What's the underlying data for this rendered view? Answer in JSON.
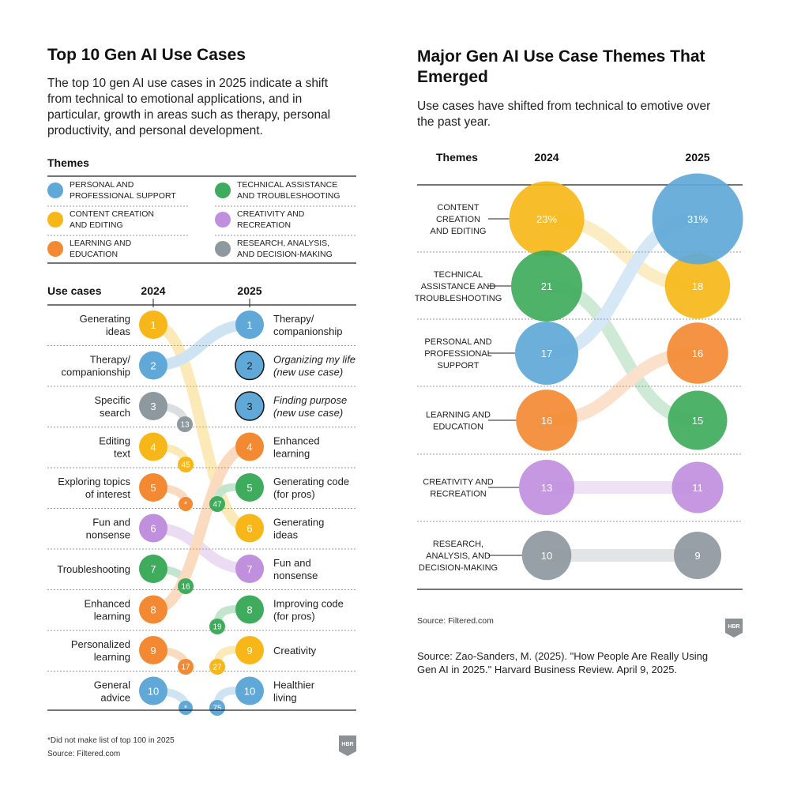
{
  "colors": {
    "personal_support": "#5fa8d8",
    "content_creation": "#f7b718",
    "learning": "#f38a33",
    "technical": "#3fab5c",
    "creativity": "#c08fde",
    "research": "#8e989f",
    "rule": "#222222",
    "dotted": "#9a9a9a"
  },
  "left": {
    "title": "Top 10 Gen AI Use Cases",
    "description_lines": [
      "The top 10 gen AI use cases in 2025 indicate a shift",
      "from technical to emotional applications, and in",
      "particular, growth in areas such as therapy, personal",
      "productivity, and personal development."
    ],
    "themes_heading": "Themes",
    "themes": [
      {
        "key": "personal_support",
        "lines": [
          "PERSONAL AND",
          "PROFESSIONAL SUPPORT"
        ]
      },
      {
        "key": "technical",
        "lines": [
          "TECHNICAL ASSISTANCE",
          "AND TROUBLESHOOTING"
        ]
      },
      {
        "key": "content_creation",
        "lines": [
          "CONTENT CREATION",
          "AND EDITING"
        ]
      },
      {
        "key": "creativity",
        "lines": [
          "CREATIVITY AND",
          "RECREATION"
        ]
      },
      {
        "key": "learning",
        "lines": [
          "LEARNING AND",
          "EDUCATION"
        ]
      },
      {
        "key": "research",
        "lines": [
          "RESEARCH, ANALYSIS,",
          "AND DECISION-MAKING"
        ]
      }
    ],
    "usecases_heading": "Use cases",
    "footnote": "*Did not make list of top 100 in 2025",
    "source": "Source: Filtered.com",
    "logo": "HBR"
  },
  "right": {
    "title_lines": [
      "Major Gen AI Use Case Themes That",
      "Emerged"
    ],
    "subtitle_lines": [
      "Use cases have shifted from technical to emotive over",
      "the past year."
    ],
    "themes_heading": "Themes",
    "source": "Source: Filtered.com",
    "logo": "HBR",
    "citation_lines": [
      "Source: Zao-Sanders, M. (2025). \"How People Are Really Using",
      "Gen AI in 2025.\" Harvard Business Review. April 9, 2025."
    ]
  },
  "chart_data": [
    {
      "type": "table",
      "title": "Top 10 Gen AI Use Cases",
      "columns": [
        "2024",
        "2025"
      ],
      "rankings_2024": [
        {
          "rank": 1,
          "label_lines": [
            "Generating",
            "ideas"
          ],
          "theme": "content_creation",
          "rank_2025": "6"
        },
        {
          "rank": 2,
          "label_lines": [
            "Therapy/",
            "companionship"
          ],
          "theme": "personal_support",
          "rank_2025": "1"
        },
        {
          "rank": 3,
          "label_lines": [
            "Specific",
            "search"
          ],
          "theme": "research",
          "rank_2025": "13"
        },
        {
          "rank": 4,
          "label_lines": [
            "Editing",
            "text"
          ],
          "theme": "content_creation",
          "rank_2025": "45"
        },
        {
          "rank": 5,
          "label_lines": [
            "Exploring topics",
            "of interest"
          ],
          "theme": "learning",
          "rank_2025": "*"
        },
        {
          "rank": 6,
          "label_lines": [
            "Fun and",
            "nonsense"
          ],
          "theme": "creativity",
          "rank_2025": "7"
        },
        {
          "rank": 7,
          "label_lines": [
            "Troubleshooting"
          ],
          "theme": "technical",
          "rank_2025": "16"
        },
        {
          "rank": 8,
          "label_lines": [
            "Enhanced",
            "learning"
          ],
          "theme": "learning",
          "rank_2025": "4"
        },
        {
          "rank": 9,
          "label_lines": [
            "Personalized",
            "learning"
          ],
          "theme": "learning",
          "rank_2025": "17"
        },
        {
          "rank": 10,
          "label_lines": [
            "General",
            "advice"
          ],
          "theme": "personal_support",
          "rank_2025": "*"
        }
      ],
      "rankings_2025": [
        {
          "rank": 1,
          "label_lines": [
            "Therapy/",
            "companionship"
          ],
          "theme": "personal_support",
          "rank_2024": "2",
          "italic": false
        },
        {
          "rank": 2,
          "label_lines": [
            "Organizing my life",
            "(new use case)"
          ],
          "theme": "personal_support",
          "rank_2024": "new",
          "italic": true
        },
        {
          "rank": 3,
          "label_lines": [
            "Finding purpose",
            "(new use case)"
          ],
          "theme": "personal_support",
          "rank_2024": "new",
          "italic": true
        },
        {
          "rank": 4,
          "label_lines": [
            "Enhanced",
            "learning"
          ],
          "theme": "learning",
          "rank_2024": "8",
          "italic": false
        },
        {
          "rank": 5,
          "label_lines": [
            "Generating code",
            "(for pros)"
          ],
          "theme": "technical",
          "rank_2024": "47",
          "italic": false
        },
        {
          "rank": 6,
          "label_lines": [
            "Generating",
            "ideas"
          ],
          "theme": "content_creation",
          "rank_2024": "1",
          "italic": false
        },
        {
          "rank": 7,
          "label_lines": [
            "Fun and",
            "nonsense"
          ],
          "theme": "creativity",
          "rank_2024": "6",
          "italic": false
        },
        {
          "rank": 8,
          "label_lines": [
            "Improving code",
            "(for pros)"
          ],
          "theme": "technical",
          "rank_2024": "19",
          "italic": false
        },
        {
          "rank": 9,
          "label_lines": [
            "Creativity"
          ],
          "theme": "content_creation",
          "rank_2024": "27",
          "italic": false
        },
        {
          "rank": 10,
          "label_lines": [
            "Healthier",
            "living"
          ],
          "theme": "personal_support",
          "rank_2024": "75",
          "italic": false
        }
      ]
    },
    {
      "type": "bump",
      "title": "Major Gen AI Use Case Themes That Emerged",
      "columns": [
        "2024",
        "2025"
      ],
      "unit": "percent",
      "themes": [
        {
          "key": "content_creation",
          "label_lines": [
            "CONTENT",
            "CREATION",
            "AND EDITING"
          ],
          "v2024": 23,
          "v2025": 18,
          "label2024": "23%",
          "label2025": "18"
        },
        {
          "key": "technical",
          "label_lines": [
            "TECHNICAL",
            "ASSISTANCE AND",
            "TROUBLESHOOTING"
          ],
          "v2024": 21,
          "v2025": 15,
          "label2024": "21",
          "label2025": "15"
        },
        {
          "key": "personal_support",
          "label_lines": [
            "PERSONAL AND",
            "PROFESSIONAL",
            "SUPPORT"
          ],
          "v2024": 17,
          "v2025": 31,
          "label2024": "17",
          "label2025": "31%"
        },
        {
          "key": "learning",
          "label_lines": [
            "LEARNING AND",
            "EDUCATION"
          ],
          "v2024": 16,
          "v2025": 16,
          "label2024": "16",
          "label2025": "16"
        },
        {
          "key": "creativity",
          "label_lines": [
            "CREATIVITY AND",
            "RECREATION"
          ],
          "v2024": 13,
          "v2025": 11,
          "label2024": "13",
          "label2025": "11"
        },
        {
          "key": "research",
          "label_lines": [
            "RESEARCH,",
            "ANALYSIS, AND",
            "DECISION-MAKING"
          ],
          "v2024": 10,
          "v2025": 9,
          "label2024": "10",
          "label2025": "9"
        }
      ]
    }
  ]
}
